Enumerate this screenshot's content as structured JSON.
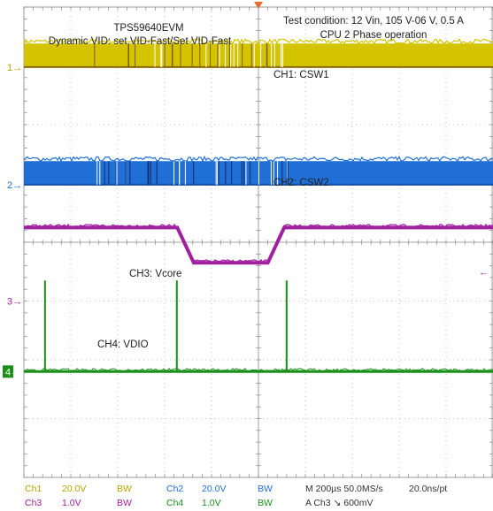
{
  "chart_data": {
    "type": "line",
    "title": "",
    "xlabel": "",
    "ylabel": "",
    "grid": true,
    "x_divisions": 10,
    "y_divisions": 8,
    "legend": "",
    "annotations": {
      "board": "TPS59640EVM",
      "mode": "Dynamic VID: set VID-Fast/Set VID-Fast",
      "condition_line1": "Test condition: 12 Vin, 105 V-06 V, 0.5 A",
      "condition_line2": "CPU 2 Phase operation"
    },
    "channel_markers": [
      "1",
      "2",
      "3",
      "4"
    ],
    "series": [
      {
        "name": "CH1: CSW1",
        "color": "#d4c400",
        "kind": "switching",
        "baseline_div": 1.0,
        "amplitude_div": 1.0
      },
      {
        "name": "CH2: CSW2",
        "color": "#1f6fd6",
        "kind": "switching",
        "baseline_div": 3.0,
        "amplitude_div": 1.0
      },
      {
        "name": "CH3: Vcore",
        "color": "#a020a0",
        "kind": "step",
        "x_div": [
          0.0,
          3.27,
          3.62,
          5.2,
          5.55,
          10.0
        ],
        "y_div": [
          3.75,
          3.75,
          4.35,
          4.35,
          3.75,
          3.75
        ]
      },
      {
        "name": "CH4: VDIO",
        "color": "#1a8f1a",
        "kind": "pulses",
        "baseline_div": 6.2,
        "pulse_x_div": [
          0.45,
          3.26,
          5.6
        ],
        "pulse_height_div": 1.55
      }
    ]
  },
  "status": {
    "row1": [
      {
        "text": "Ch1",
        "color": "#b8a000"
      },
      {
        "text": "20.0V",
        "color": "#b8a000"
      },
      {
        "text": "BW",
        "color": "#b8a000"
      },
      {
        "text": "Ch2",
        "color": "#1f6fd6"
      },
      {
        "text": "20.0V",
        "color": "#1f6fd6"
      },
      {
        "text": "BW",
        "color": "#1f6fd6"
      },
      {
        "text": "M 200µs 50.0MS/s",
        "color": "#333333"
      },
      {
        "text": "20.0ns/pt",
        "color": "#333333"
      }
    ],
    "row2": [
      {
        "text": "Ch3",
        "color": "#a020a0"
      },
      {
        "text": "1.0V",
        "color": "#a020a0"
      },
      {
        "text": "BW",
        "color": "#a020a0"
      },
      {
        "text": "Ch4",
        "color": "#1a8f1a"
      },
      {
        "text": "1.0V",
        "color": "#1a8f1a"
      },
      {
        "text": "BW",
        "color": "#1a8f1a"
      },
      {
        "text": "A Ch3 ↘ 600mV",
        "color": "#333333"
      }
    ]
  },
  "marker_colors": {
    "ch1": "#b8a000",
    "ch2": "#1f6fd6",
    "ch3": "#a020a0",
    "ch4": "#1a8f1a",
    "trigger": "#e86b30"
  }
}
